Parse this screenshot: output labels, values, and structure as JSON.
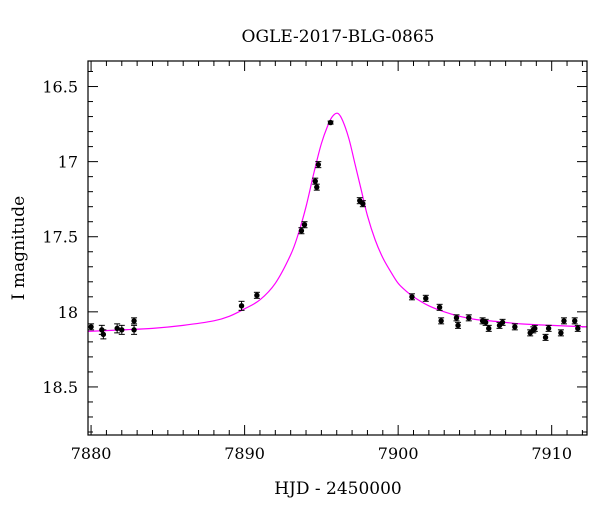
{
  "chart_data": {
    "type": "scatter",
    "title": "OGLE-2017-BLG-0865",
    "xlabel": "HJD - 2450000",
    "ylabel": "I magnitude",
    "xlim": [
      7879.8,
      7912.3
    ],
    "ylim": [
      18.82,
      16.33
    ],
    "y_inverted": true,
    "x_ticks_major": [
      7880,
      7890,
      7900,
      7910
    ],
    "x_tick_labels": [
      "7880",
      "7890",
      "7900",
      "7910"
    ],
    "x_minor_step": 1,
    "y_ticks_major": [
      16.5,
      17,
      17.5,
      18,
      18.5
    ],
    "y_tick_labels": [
      "16.5",
      "17",
      "17.5",
      "18",
      "18.5"
    ],
    "y_minor_step": 0.1,
    "grid": false,
    "model_color": "#ff00ff",
    "point_color": "#000000",
    "model": {
      "x": [
        7879.8,
        7882,
        7884,
        7886,
        7888,
        7889,
        7890,
        7891,
        7892,
        7893,
        7893.5,
        7894,
        7894.5,
        7895,
        7895.5,
        7895.8,
        7896.1,
        7896.4,
        7896.8,
        7897.2,
        7897.6,
        7898,
        7898.5,
        7899,
        7899.5,
        7900,
        7900.5,
        7901,
        7902,
        7903,
        7904,
        7905,
        7906,
        7908,
        7910,
        7912.3
      ],
      "y": [
        18.13,
        18.12,
        18.11,
        18.09,
        18.06,
        18.03,
        17.98,
        17.92,
        17.81,
        17.62,
        17.48,
        17.3,
        17.08,
        16.88,
        16.74,
        16.69,
        16.68,
        16.73,
        16.85,
        17.02,
        17.19,
        17.36,
        17.52,
        17.64,
        17.73,
        17.81,
        17.86,
        17.9,
        17.96,
        18.0,
        18.03,
        18.05,
        18.06,
        18.08,
        18.09,
        18.1
      ]
    },
    "points": {
      "x": [
        7880.0,
        7880.7,
        7880.8,
        7881.7,
        7882.0,
        7882.8,
        7882.8,
        7889.8,
        7890.8,
        7893.7,
        7893.9,
        7894.6,
        7894.7,
        7894.8,
        7895.6,
        7897.5,
        7897.7,
        7900.9,
        7901.8,
        7902.7,
        7902.8,
        7903.8,
        7903.9,
        7904.6,
        7905.5,
        7905.7,
        7905.9,
        7906.6,
        7906.8,
        7907.6,
        7908.6,
        7908.8,
        7908.9,
        7909.6,
        7909.8,
        7910.6,
        7910.8,
        7911.5,
        7911.7
      ],
      "y": [
        18.1,
        18.12,
        18.15,
        18.11,
        18.12,
        18.06,
        18.12,
        17.96,
        17.89,
        17.46,
        17.42,
        17.13,
        17.17,
        17.02,
        16.74,
        17.26,
        17.28,
        17.9,
        17.91,
        17.97,
        18.06,
        18.04,
        18.09,
        18.04,
        18.06,
        18.07,
        18.11,
        18.09,
        18.07,
        18.1,
        18.14,
        18.12,
        18.11,
        18.17,
        18.11,
        18.14,
        18.06,
        18.06,
        18.11
      ],
      "err": [
        0.02,
        0.03,
        0.03,
        0.03,
        0.03,
        0.02,
        0.03,
        0.03,
        0.02,
        0.02,
        0.02,
        0.02,
        0.02,
        0.02,
        0.01,
        0.02,
        0.02,
        0.02,
        0.02,
        0.02,
        0.02,
        0.02,
        0.02,
        0.02,
        0.02,
        0.02,
        0.02,
        0.02,
        0.02,
        0.02,
        0.02,
        0.02,
        0.02,
        0.02,
        0.02,
        0.02,
        0.02,
        0.02,
        0.02
      ]
    }
  }
}
